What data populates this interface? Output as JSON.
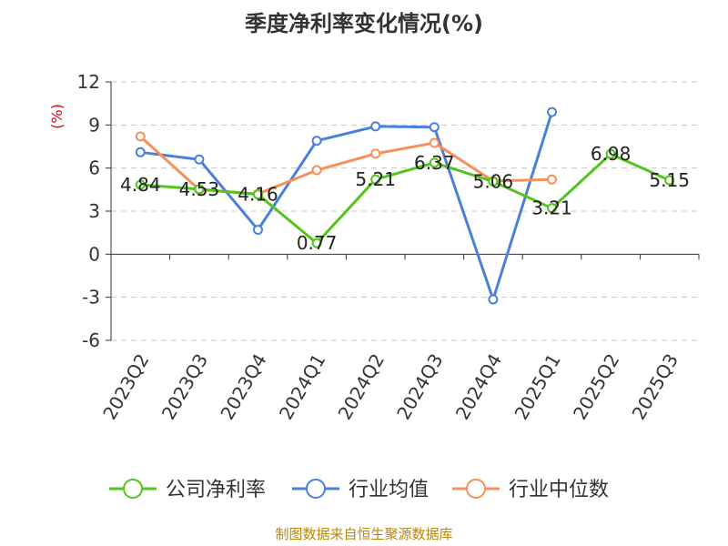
{
  "chart_data": {
    "type": "line",
    "title": "季度净利率变化情况(%)",
    "ylabel": "(%)",
    "xlabel": "",
    "categories": [
      "2023Q2",
      "2023Q3",
      "2023Q4",
      "2024Q1",
      "2024Q2",
      "2024Q3",
      "2024Q4",
      "2025Q1",
      "2025Q2",
      "2025Q3"
    ],
    "ylim": [
      -6,
      12
    ],
    "yticks": [
      -6,
      -3,
      0,
      3,
      6,
      9,
      12
    ],
    "grid": true,
    "legend_position": "bottom",
    "series": [
      {
        "name": "公司净利率",
        "color": "#52c41a",
        "values": [
          4.84,
          4.53,
          4.16,
          0.77,
          5.21,
          6.37,
          5.06,
          3.21,
          6.98,
          5.15
        ],
        "labels": [
          "4.84",
          "4.53",
          "4.16",
          "0.77",
          "5.21",
          "6.37",
          "5.06",
          "3.21",
          "6.98",
          "5.15"
        ]
      },
      {
        "name": "行业均值",
        "color": "#4a7fdc",
        "values": [
          7.1,
          6.6,
          1.7,
          7.9,
          8.9,
          8.85,
          -3.15,
          9.9,
          null,
          null
        ]
      },
      {
        "name": "行业中位数",
        "color": "#f5905a",
        "values": [
          8.2,
          4.5,
          4.2,
          5.85,
          7.0,
          7.75,
          5.1,
          5.2,
          null,
          null
        ]
      }
    ]
  },
  "footer": {
    "source": "制图数据来自恒生聚源数据库"
  }
}
